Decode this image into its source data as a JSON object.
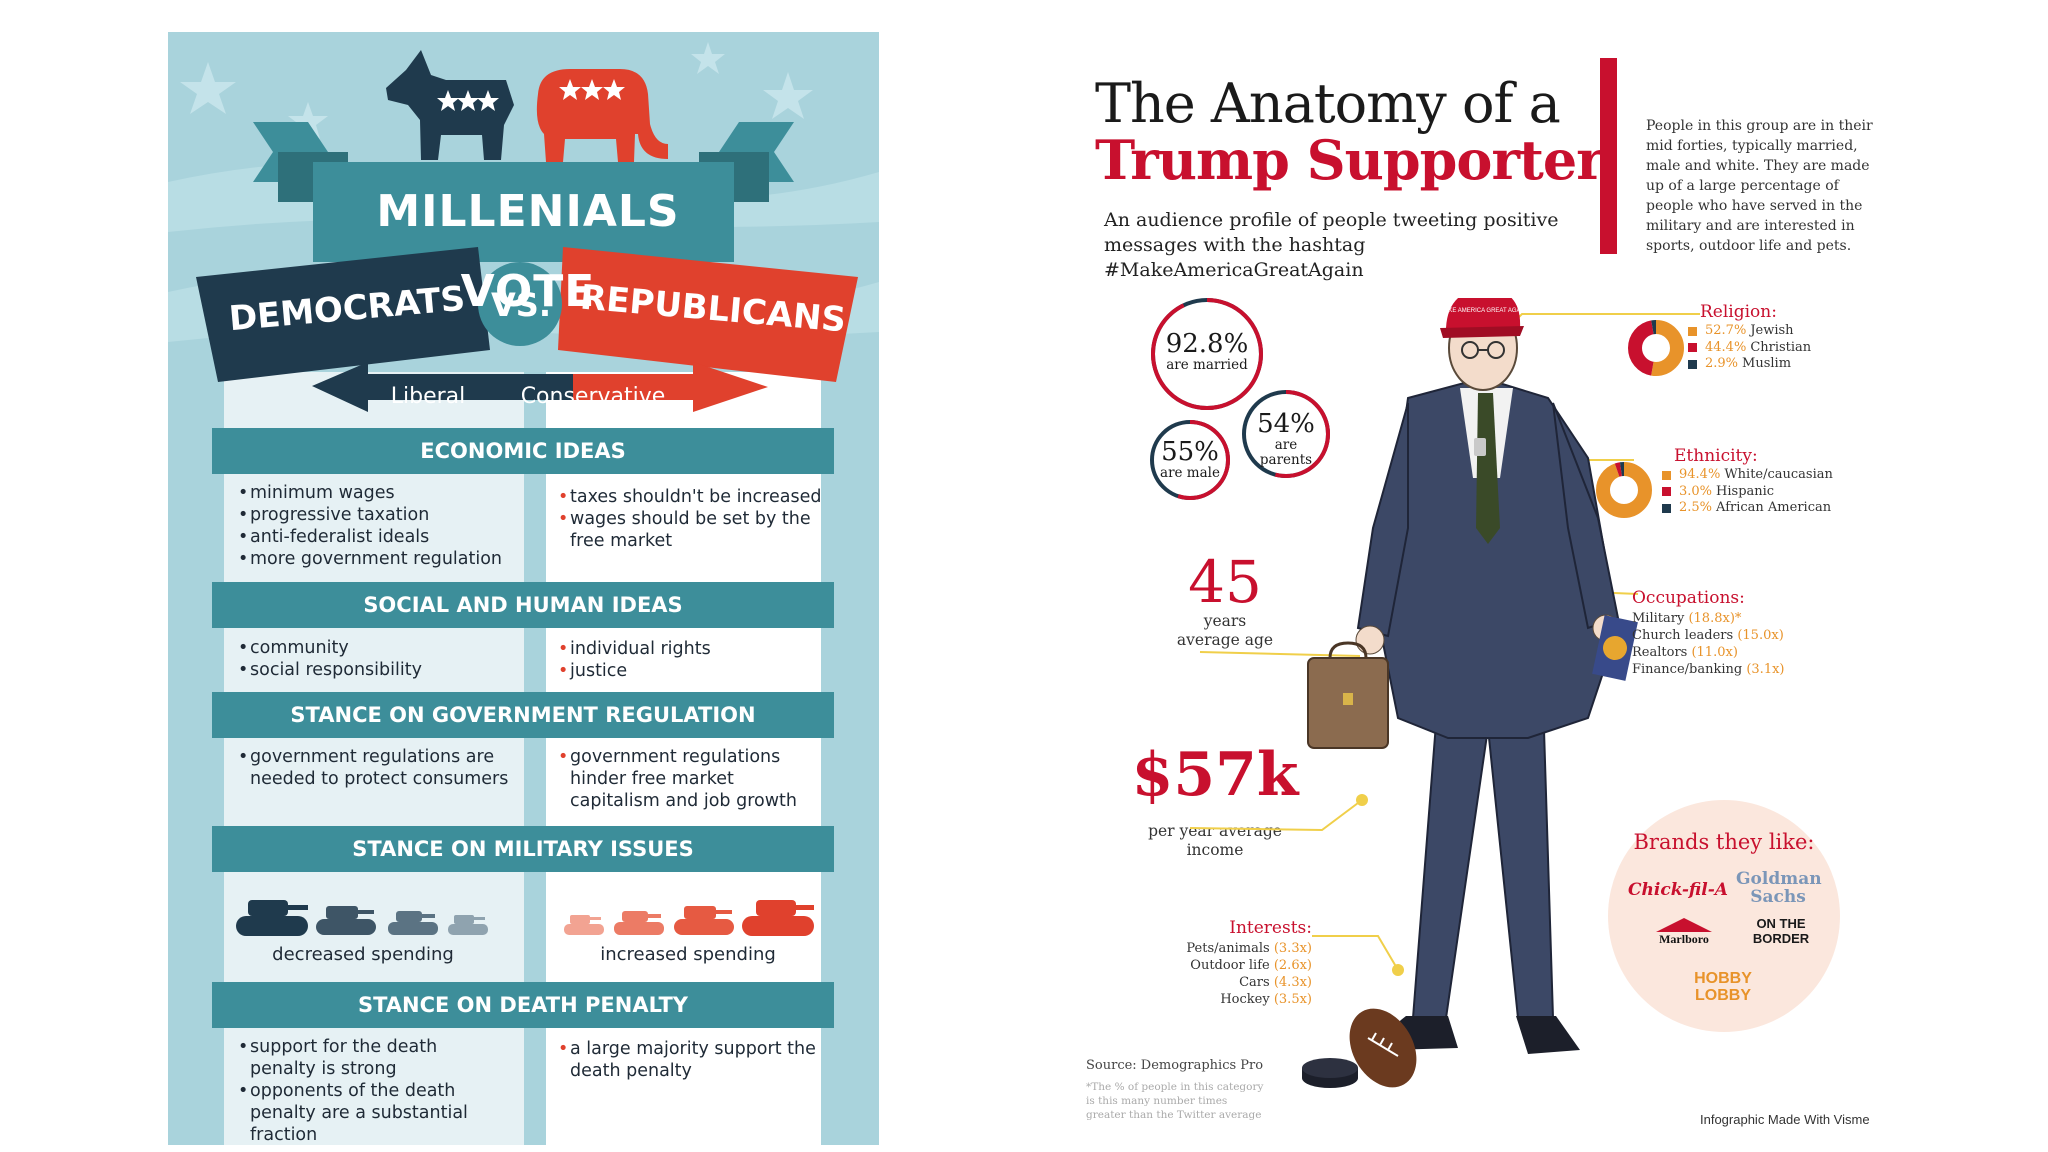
{
  "left": {
    "title": "MILLENIALS VOTE",
    "democrats": "DEMOCRATS",
    "vs": "VS.",
    "republicans": "REPUBLICANS",
    "liberal": "Liberal",
    "conservative": "Conservative",
    "sections": [
      {
        "heading": "ECONOMIC IDEAS",
        "dem": [
          "minimum wages",
          "progressive taxation",
          "anti-federalist ideals",
          "more government regulation"
        ],
        "rep": [
          "taxes shouldn't be increased",
          "wages should be set by the free market"
        ]
      },
      {
        "heading": "SOCIAL AND HUMAN IDEAS",
        "dem": [
          "community",
          "social responsibility"
        ],
        "rep": [
          "individual rights",
          "justice"
        ]
      },
      {
        "heading": "STANCE ON GOVERNMENT REGULATION",
        "dem": [
          "government regulations are needed to protect consumers"
        ],
        "rep": [
          "government regulations hinder free market capitalism and job growth"
        ]
      },
      {
        "heading": "STANCE ON MILITARY ISSUES",
        "dem_spending": "decreased spending",
        "rep_spending": "increased spending"
      },
      {
        "heading": "STANCE ON DEATH PENALTY",
        "dem": [
          "support for the death penalty is strong",
          "opponents of the death penalty are a substantial fraction"
        ],
        "rep": [
          "a large majority support the death penalty"
        ]
      }
    ],
    "colors": {
      "dem": "#1f3a4d",
      "rep": "#e0412d",
      "teal": "#3d8e9a"
    }
  },
  "right": {
    "title_line1": "The Anatomy of a",
    "title_line2": "Trump Supporter",
    "subtitle": "An audience profile of people tweeting positive messages with the hashtag #MakeAmericaGreatAgain",
    "description": "People in this group are in their mid forties, typically married, male and white. They are made up of a large percentage of people who have served in the military and are interested in sports, outdoor life and pets.",
    "married": {
      "value": "92.8%",
      "label": "are married",
      "pct": 92.8
    },
    "male": {
      "value": "55%",
      "label": "are male",
      "pct": 55
    },
    "parents": {
      "value": "54%",
      "label_1": "are",
      "label_2": "parents",
      "pct": 54
    },
    "age": {
      "value": "45",
      "label_1": "years",
      "label_2": "average age"
    },
    "income": {
      "value": "$57k",
      "label_1": "per year average",
      "label_2": "income"
    },
    "religion": {
      "heading": "Religion:",
      "items": [
        {
          "pct": "52.7%",
          "label": "Jewish",
          "value": 52.7,
          "color": "#e8932a"
        },
        {
          "pct": "44.4%",
          "label": "Christian",
          "value": 44.4,
          "color": "#c8102e"
        },
        {
          "pct": "2.9%",
          "label": "Muslim",
          "value": 2.9,
          "color": "#1f3a4d"
        }
      ]
    },
    "ethnicity": {
      "heading": "Ethnicity:",
      "items": [
        {
          "pct": "94.4%",
          "label": "White/caucasian",
          "value": 94.4,
          "color": "#e8932a"
        },
        {
          "pct": "3.0%",
          "label": "Hispanic",
          "value": 3.0,
          "color": "#c8102e"
        },
        {
          "pct": "2.5%",
          "label": "African American",
          "value": 2.5,
          "color": "#1f3a4d"
        }
      ]
    },
    "occupations": {
      "heading": "Occupations:",
      "items": [
        {
          "label": "Military",
          "mult": "(18.8x)*"
        },
        {
          "label": "Church leaders",
          "mult": "(15.0x)"
        },
        {
          "label": "Realtors",
          "mult": "(11.0x)"
        },
        {
          "label": "Finance/banking",
          "mult": "(3.1x)"
        }
      ]
    },
    "interests": {
      "heading": "Interests:",
      "items": [
        {
          "label": "Pets/animals",
          "mult": "(3.3x)"
        },
        {
          "label": "Outdoor life",
          "mult": "(2.6x)"
        },
        {
          "label": "Cars",
          "mult": "(4.3x)"
        },
        {
          "label": "Hockey",
          "mult": "(3.5x)"
        }
      ]
    },
    "brands": {
      "heading": "Brands they like:",
      "items": [
        "Chick-fil-A",
        "Goldman Sachs",
        "Marlboro",
        "ON THE BORDER",
        "HOBBY LOBBY"
      ]
    },
    "hat_text": "MAKE AMERICA GREAT AGAIN",
    "source": "Source: Demographics Pro",
    "footnote": "*The % of people in this category is this many number times greater than the Twitter average",
    "made_with": "Infographic Made With Visme",
    "colors": {
      "red": "#c8102e",
      "orange": "#e8932a",
      "navy": "#1f3a4d",
      "suit": "#3c4866"
    }
  }
}
